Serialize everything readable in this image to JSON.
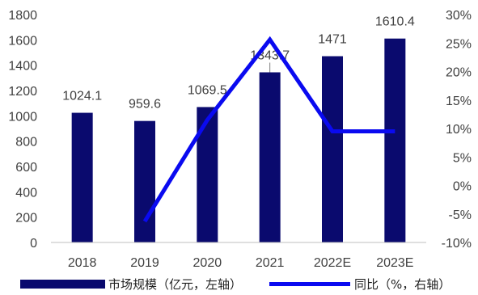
{
  "chart_data": {
    "type": "bar",
    "categories": [
      "2018",
      "2019",
      "2020",
      "2021",
      "2022E",
      "2023E"
    ],
    "series": [
      {
        "name": "市场规模（亿元，左轴）",
        "type": "bar",
        "axis": "left",
        "color": "#0a0a6e",
        "values": [
          1024.1,
          959.6,
          1069.5,
          1343.7,
          1471,
          1610.4
        ],
        "data_labels": [
          "1024.1",
          "959.6",
          "1069.5",
          "1343.7",
          "1471",
          "1610.4"
        ]
      },
      {
        "name": "同比（%，右轴）",
        "type": "line",
        "axis": "right",
        "color": "#0a0af0",
        "values": [
          null,
          -6.3,
          11.5,
          25.6,
          9.5,
          9.5
        ]
      }
    ],
    "y_left": {
      "min": 0,
      "max": 1800,
      "ticks": [
        "0",
        "200",
        "400",
        "600",
        "800",
        "1000",
        "1200",
        "1400",
        "1600",
        "1800"
      ]
    },
    "y_right": {
      "min": -10,
      "max": 30,
      "ticks": [
        "-10%",
        "-5%",
        "0%",
        "5%",
        "10%",
        "15%",
        "20%",
        "25%",
        "30%"
      ]
    },
    "grid": false,
    "legend_position": "bottom"
  }
}
